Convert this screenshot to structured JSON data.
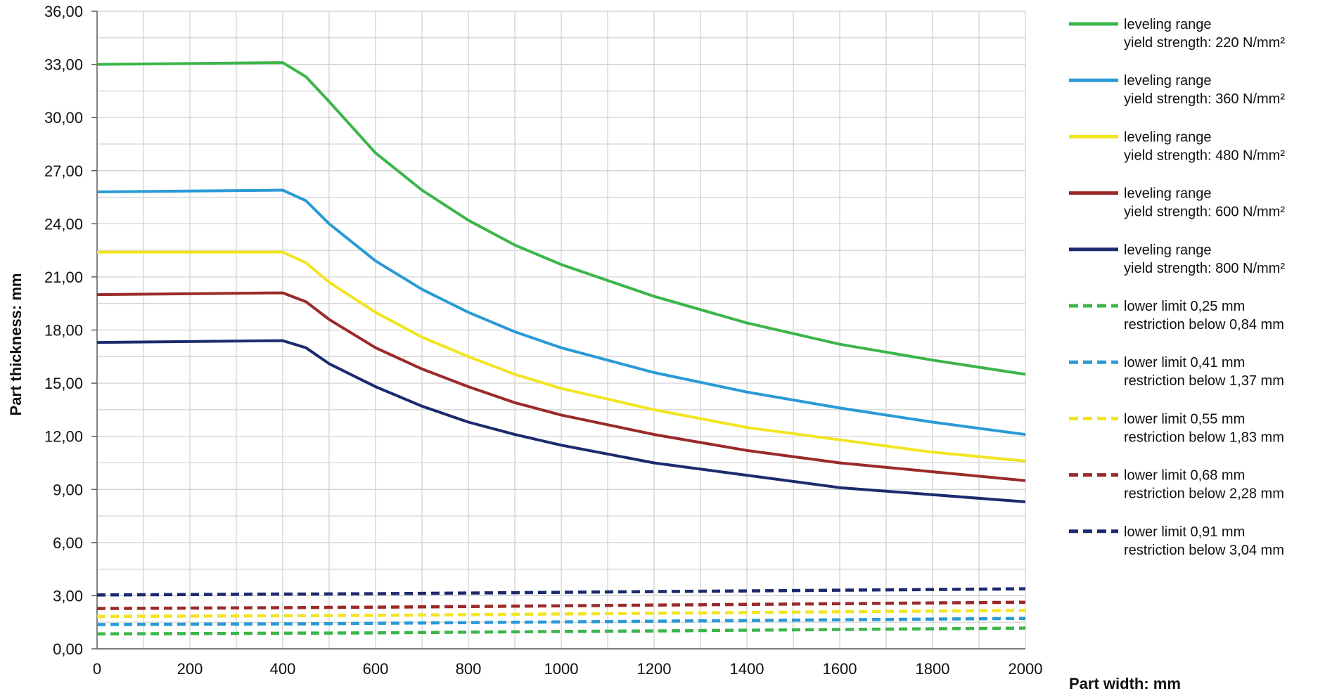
{
  "chart_data": {
    "type": "line",
    "title": "",
    "xlabel": "Part width: mm",
    "ylabel": "Part thickness: mm",
    "xlim": [
      0,
      2000
    ],
    "ylim": [
      0,
      36
    ],
    "grid": true,
    "legend_position": "right",
    "x_ticks": [
      "0",
      "200",
      "400",
      "600",
      "800",
      "1000",
      "1200",
      "1400",
      "1600",
      "1800",
      "2000"
    ],
    "y_ticks": [
      "0,00",
      "3,00",
      "6,00",
      "9,00",
      "12,00",
      "15,00",
      "18,00",
      "21,00",
      "24,00",
      "27,00",
      "30,00",
      "33,00",
      "36,00"
    ],
    "x": [
      0,
      400,
      450,
      500,
      600,
      700,
      800,
      900,
      1000,
      1200,
      1400,
      1600,
      1800,
      2000
    ],
    "series": [
      {
        "name_line1": "leveling range",
        "name_line2": "yield strength:  220 N/mm²",
        "color": "#3cb54a",
        "dash": false,
        "values": [
          33.0,
          33.1,
          32.3,
          30.9,
          28.0,
          25.9,
          24.2,
          22.8,
          21.7,
          19.9,
          18.4,
          17.2,
          16.3,
          15.5
        ]
      },
      {
        "name_line1": "leveling range",
        "name_line2": "yield strength:  360 N/mm²",
        "color": "#2a9ad6",
        "dash": false,
        "values": [
          25.8,
          25.9,
          25.3,
          24.0,
          21.9,
          20.3,
          19.0,
          17.9,
          17.0,
          15.6,
          14.5,
          13.6,
          12.8,
          12.1
        ]
      },
      {
        "name_line1": "leveling range",
        "name_line2": "yield strength:  480 N/mm²",
        "color": "#f2e422",
        "dash": false,
        "values": [
          22.4,
          22.4,
          21.8,
          20.7,
          19.0,
          17.6,
          16.5,
          15.5,
          14.7,
          13.5,
          12.5,
          11.8,
          11.1,
          10.6
        ]
      },
      {
        "name_line1": "leveling range",
        "name_line2": "yield strength:  600 N/mm²",
        "color": "#9b2a2a",
        "dash": false,
        "values": [
          20.0,
          20.1,
          19.6,
          18.6,
          17.0,
          15.8,
          14.8,
          13.9,
          13.2,
          12.1,
          11.2,
          10.5,
          10.0,
          9.5
        ]
      },
      {
        "name_line1": "leveling range",
        "name_line2": "yield strength:  800 N/mm²",
        "color": "#1c2a6e",
        "dash": false,
        "values": [
          17.3,
          17.4,
          17.0,
          16.1,
          14.8,
          13.7,
          12.8,
          12.1,
          11.5,
          10.5,
          9.8,
          9.1,
          8.7,
          8.3
        ]
      },
      {
        "name_line1": "lower limit 0,25 mm",
        "name_line2": "restriction below 0,84 mm",
        "color": "#3cb54a",
        "dash": true,
        "values": [
          0.84,
          0.88,
          0.89,
          0.89,
          0.9,
          0.92,
          0.94,
          0.96,
          0.98,
          1.01,
          1.05,
          1.09,
          1.13,
          1.17
        ]
      },
      {
        "name_line1": "lower limit 0,41 mm",
        "name_line2": "restriction below 1,37 mm",
        "color": "#2a9ad6",
        "dash": true,
        "values": [
          1.37,
          1.41,
          1.41,
          1.42,
          1.44,
          1.46,
          1.48,
          1.5,
          1.52,
          1.56,
          1.6,
          1.64,
          1.68,
          1.72
        ]
      },
      {
        "name_line1": "lower limit 0,55 mm",
        "name_line2": "restriction below 1,83 mm",
        "color": "#f2e422",
        "dash": true,
        "values": [
          1.83,
          1.87,
          1.87,
          1.88,
          1.89,
          1.91,
          1.93,
          1.95,
          1.97,
          2.01,
          2.05,
          2.09,
          2.13,
          2.17
        ]
      },
      {
        "name_line1": "lower limit 0,68 mm",
        "name_line2": "restriction below 2,28 mm",
        "color": "#9b2a2a",
        "dash": true,
        "values": [
          2.28,
          2.32,
          2.33,
          2.34,
          2.35,
          2.37,
          2.39,
          2.41,
          2.43,
          2.47,
          2.51,
          2.55,
          2.59,
          2.63
        ]
      },
      {
        "name_line1": "lower limit 0,91 mm",
        "name_line2": "restriction below 3,04 mm",
        "color": "#1c2a6e",
        "dash": true,
        "values": [
          3.04,
          3.09,
          3.09,
          3.1,
          3.11,
          3.13,
          3.15,
          3.17,
          3.19,
          3.23,
          3.27,
          3.31,
          3.35,
          3.39
        ]
      }
    ]
  }
}
